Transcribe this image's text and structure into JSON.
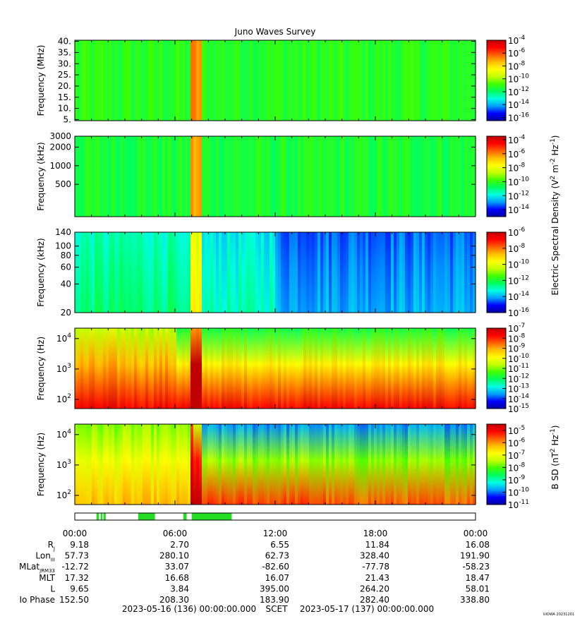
{
  "chart_data": {
    "type": "heatmap",
    "title": "Juno Waves Survey",
    "colormap": [
      "#0000a0",
      "#0000ff",
      "#00a0ff",
      "#00ffe0",
      "#00ff60",
      "#40ff00",
      "#c0ff00",
      "#ffff00",
      "#ffc000",
      "#ff6000",
      "#ff0000",
      "#c00000"
    ],
    "panels": [
      {
        "ylabel": "Frequency (MHz)",
        "yscale": "linear",
        "ylim": [
          4.5,
          40.5
        ],
        "yticks": [
          "5.",
          "10.",
          "15.",
          "20.",
          "25.",
          "30.",
          "35.",
          "40."
        ],
        "ytick_values": [
          5,
          10,
          15,
          20,
          25,
          30,
          35,
          40
        ],
        "colorbar_ticks": [
          "10-4",
          "10-6",
          "10-8",
          "10-10",
          "10-12",
          "10-14",
          "10-16"
        ],
        "colorbar_range": [
          -16.5,
          -4
        ]
      },
      {
        "ylabel": "Frequency (kHz)",
        "yscale": "log",
        "ylim": [
          150,
          3000
        ],
        "yticks": [
          "3000",
          "2000",
          "1000",
          "500"
        ],
        "ytick_values": [
          3000,
          2000,
          1000,
          500
        ],
        "colorbar_ticks": [
          "10-4",
          "10-6",
          "10-8",
          "10-10",
          "10-12",
          "10-14"
        ],
        "colorbar_range": [
          -15,
          -3.5
        ]
      },
      {
        "ylabel": "Frequency (kHz)",
        "yscale": "log",
        "ylim": [
          20,
          140
        ],
        "yticks": [
          "140",
          "100",
          "80",
          "60",
          "40",
          "20"
        ],
        "ytick_values": [
          140,
          100,
          80,
          60,
          40,
          20
        ],
        "colorbar_ticks": [
          "10-6",
          "10-8",
          "10-10",
          "10-12",
          "10-14",
          "10-16"
        ],
        "colorbar_range": [
          -16,
          -6
        ]
      },
      {
        "ylabel": "Frequency (Hz)",
        "yscale": "log",
        "ylim": [
          50,
          22000
        ],
        "yticks": [
          {
            "base": "10",
            "exp": "4"
          },
          {
            "base": "10",
            "exp": "3"
          },
          {
            "base": "10",
            "exp": "2"
          }
        ],
        "ytick_values": [
          10000,
          1000,
          100
        ],
        "colorbar_ticks": [
          "10-7",
          "10-8",
          "10-9",
          "10-10",
          "10-11",
          "10-12",
          "10-13",
          "10-14",
          "10-15"
        ],
        "colorbar_range": [
          -15,
          -7
        ]
      },
      {
        "ylabel": "Frequency (Hz)",
        "yscale": "log",
        "ylim": [
          50,
          22000
        ],
        "yticks": [
          {
            "base": "10",
            "exp": "4"
          },
          {
            "base": "10",
            "exp": "3"
          },
          {
            "base": "10",
            "exp": "2"
          }
        ],
        "ytick_values": [
          10000,
          1000,
          100
        ],
        "colorbar_ticks": [
          "10-5",
          "10-6",
          "10-7",
          "10-8",
          "10-9",
          "10-10",
          "10-11"
        ],
        "colorbar_range": [
          -11,
          -4.5
        ]
      }
    ],
    "colorbar_labels": {
      "electric": "Electric Spectral Density (V2 m-2 Hz-1)",
      "magnetic": "B SD (nT2 Hz-1)"
    },
    "time_axis": {
      "ticks": [
        "00:00",
        "06:00",
        "12:00",
        "18:00",
        "00:00"
      ],
      "hours": [
        0,
        6,
        12,
        18,
        24
      ]
    },
    "ephemeris": {
      "rows": [
        {
          "label": "R",
          "sub": "J",
          "values": [
            "9.18",
            "2.70",
            "6.55",
            "11.84",
            "16.08"
          ]
        },
        {
          "label": "Lon",
          "sub": "III",
          "values": [
            "57.73",
            "280.10",
            "62.73",
            "328.40",
            "191.90"
          ]
        },
        {
          "label": "MLat",
          "sub": "JRM33",
          "values": [
            "-12.72",
            "33.07",
            "-82.60",
            "-77.78",
            "-58.23"
          ]
        },
        {
          "label": "MLT",
          "sub": "",
          "values": [
            "17.32",
            "16.68",
            "16.07",
            "21.43",
            "18.47"
          ]
        },
        {
          "label": "L",
          "sub": "",
          "values": [
            "9.65",
            "3.84",
            "395.00",
            "264.20",
            "58.01"
          ]
        },
        {
          "label": "Io Phase",
          "sub": "",
          "values": [
            "152.50",
            "208.30",
            "183.90",
            "282.40",
            "338.80"
          ]
        }
      ]
    },
    "mode_bar_segments_hours": [
      [
        1.3,
        1.45
      ],
      [
        1.55,
        1.65
      ],
      [
        1.72,
        1.85
      ],
      [
        3.8,
        4.8
      ],
      [
        6.5,
        6.7
      ],
      [
        7.0,
        9.4
      ]
    ],
    "footer": {
      "start": "2023-05-16 (136) 00:00:00.000",
      "scet": "SCET",
      "end": "2023-05-17 (137) 00:00:00.000"
    },
    "credit": "UIOWA 20231201"
  }
}
